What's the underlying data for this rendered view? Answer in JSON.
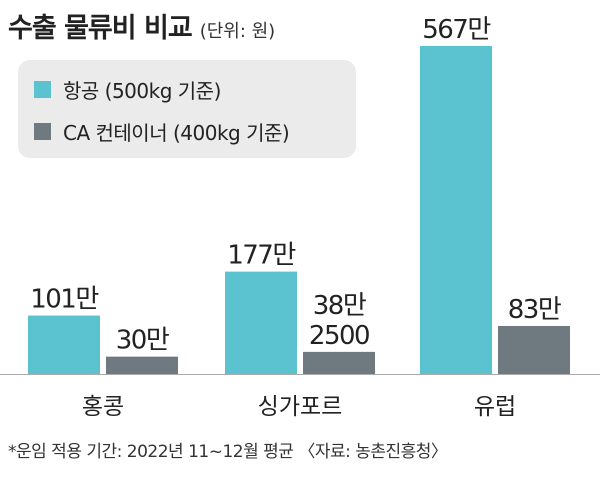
{
  "title": "수출 물류비 비교",
  "unit": "(단위: 원)",
  "footnote": "*운임 적용 기간: 2022년 11~12월 평균 〈자료: 농촌진흥청〉",
  "colors": {
    "air": "#5bc3cf",
    "container": "#6e7a80"
  },
  "chart_data": {
    "type": "bar",
    "title": "수출 물류비 비교",
    "unit": "원",
    "categories": [
      "홍콩",
      "싱가포르",
      "유럽"
    ],
    "series": [
      {
        "name": "항공 (500kg 기준)",
        "values": [
          1010000,
          1770000,
          5670000
        ],
        "labels": [
          "101만",
          "177만",
          "567만"
        ]
      },
      {
        "name": "CA 컨테이너 (400kg 기준)",
        "values": [
          300000,
          382500,
          830000
        ],
        "labels": [
          "30만",
          "38만\n2500",
          "83만"
        ]
      }
    ],
    "ylim": [
      0,
      5670000
    ],
    "legend": "top-left",
    "grid": false
  }
}
